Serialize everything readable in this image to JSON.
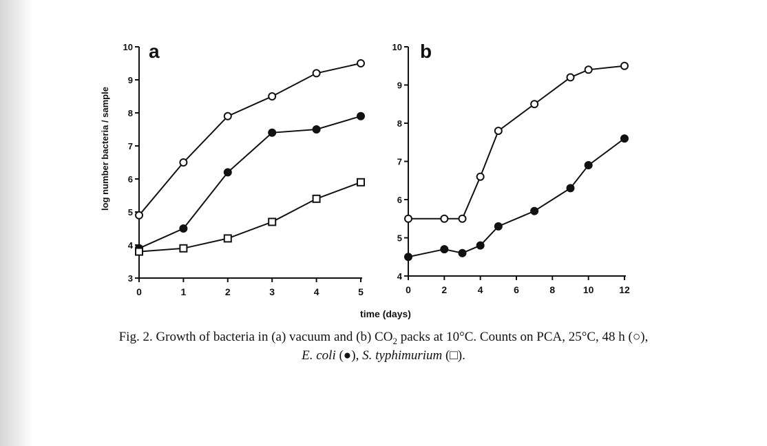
{
  "chart_data": [
    {
      "type": "line",
      "panel": "a",
      "ylabel": "log number bacteria / sample",
      "ylim": [
        3,
        10
      ],
      "yticks": [
        "3",
        "4",
        "5",
        "6",
        "7",
        "8",
        "9",
        "10"
      ],
      "xlim": [
        0,
        5
      ],
      "xticks": [
        "0",
        "1",
        "2",
        "3",
        "4",
        "5"
      ],
      "series": [
        {
          "marker": "open-circle",
          "x": [
            0,
            1,
            2,
            3,
            4,
            5
          ],
          "values": [
            4.9,
            6.5,
            7.9,
            8.5,
            9.2,
            9.5
          ]
        },
        {
          "marker": "filled-circle",
          "x": [
            0,
            1,
            2,
            3,
            4,
            5
          ],
          "values": [
            3.9,
            4.5,
            6.2,
            7.4,
            7.5,
            7.9
          ]
        },
        {
          "marker": "open-square",
          "x": [
            0,
            1,
            2,
            3,
            4,
            5
          ],
          "values": [
            3.8,
            3.9,
            4.2,
            4.7,
            5.4,
            5.9
          ]
        }
      ]
    },
    {
      "type": "line",
      "panel": "b",
      "ylim": [
        4,
        10
      ],
      "yticks": [
        "4",
        "5",
        "6",
        "7",
        "8",
        "9",
        "10"
      ],
      "xlim": [
        0,
        12
      ],
      "xticks": [
        "0",
        "2",
        "4",
        "6",
        "8",
        "10",
        "12"
      ],
      "series": [
        {
          "marker": "open-circle",
          "x": [
            0,
            2,
            3,
            4,
            5,
            7,
            9,
            10,
            12
          ],
          "values": [
            5.5,
            5.5,
            5.5,
            6.6,
            7.8,
            8.5,
            9.2,
            9.4,
            9.5
          ]
        },
        {
          "marker": "filled-circle",
          "x": [
            0,
            2,
            3,
            4,
            5,
            7,
            9,
            10,
            12
          ],
          "values": [
            4.5,
            4.7,
            4.6,
            4.8,
            5.3,
            5.7,
            6.3,
            6.9,
            7.6
          ]
        }
      ]
    }
  ],
  "figure": {
    "xlabel": "time (days)"
  },
  "caption": {
    "line1_part1": "Fig. 2. Growth of bacteria in (a) vacuum and (b) CO",
    "line1_sub": "2",
    "line1_part2": " packs at 10°C. Counts on PCA, 25°C, 48 h (○),",
    "line2_ecoli": "E. coli",
    "line2_mid": " (●), ",
    "line2_styph": "S. typhimurium",
    "line2_end": " (□)."
  },
  "colors": {
    "ink": "#111111",
    "paper": "#ffffff"
  }
}
